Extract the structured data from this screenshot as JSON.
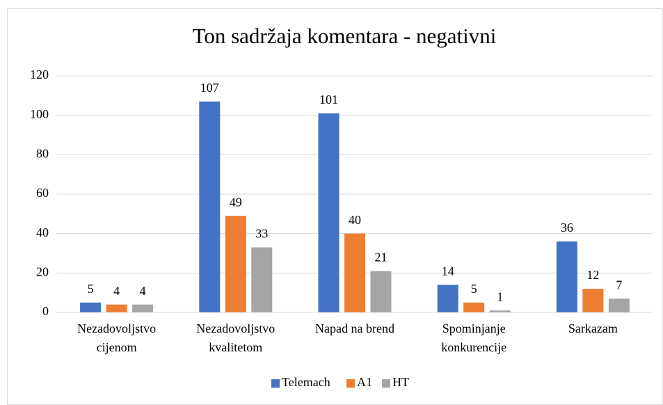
{
  "chart_data": {
    "type": "bar",
    "title": "Ton sadržaja komentara - negativni",
    "categories": [
      "Nezadovoljstvo\ncijenom",
      "Nezadovoljstvo\nkvalitetom",
      "Napad na brend",
      "Spominjanje\nkonkurencije",
      "Sarkazam"
    ],
    "series": [
      {
        "name": "Telemach",
        "color": "#4472c4",
        "values": [
          5,
          107,
          101,
          14,
          36
        ]
      },
      {
        "name": "A1",
        "color": "#ed7d31",
        "values": [
          4,
          49,
          40,
          5,
          12
        ]
      },
      {
        "name": "HT",
        "color": "#a5a5a5",
        "values": [
          4,
          33,
          21,
          1,
          7
        ]
      }
    ],
    "ylim": [
      0,
      120
    ],
    "yticks": [
      0,
      20,
      40,
      60,
      80,
      100,
      120
    ],
    "grid": true,
    "legend": "bottom"
  }
}
